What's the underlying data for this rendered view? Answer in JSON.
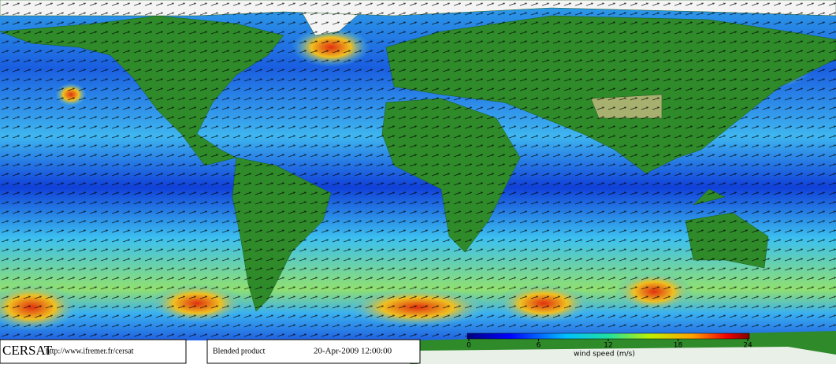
{
  "footer": {
    "brand": "CERSAT",
    "url": "http://www.ifremer.fr/cersat",
    "product": "Blended product",
    "date": "20-Apr-2009 12:00:00"
  },
  "colorbar": {
    "label": "wind speed (m/s)",
    "lim": [
      0,
      24
    ],
    "ticks": [
      0,
      6,
      12,
      18,
      24
    ]
  }
}
